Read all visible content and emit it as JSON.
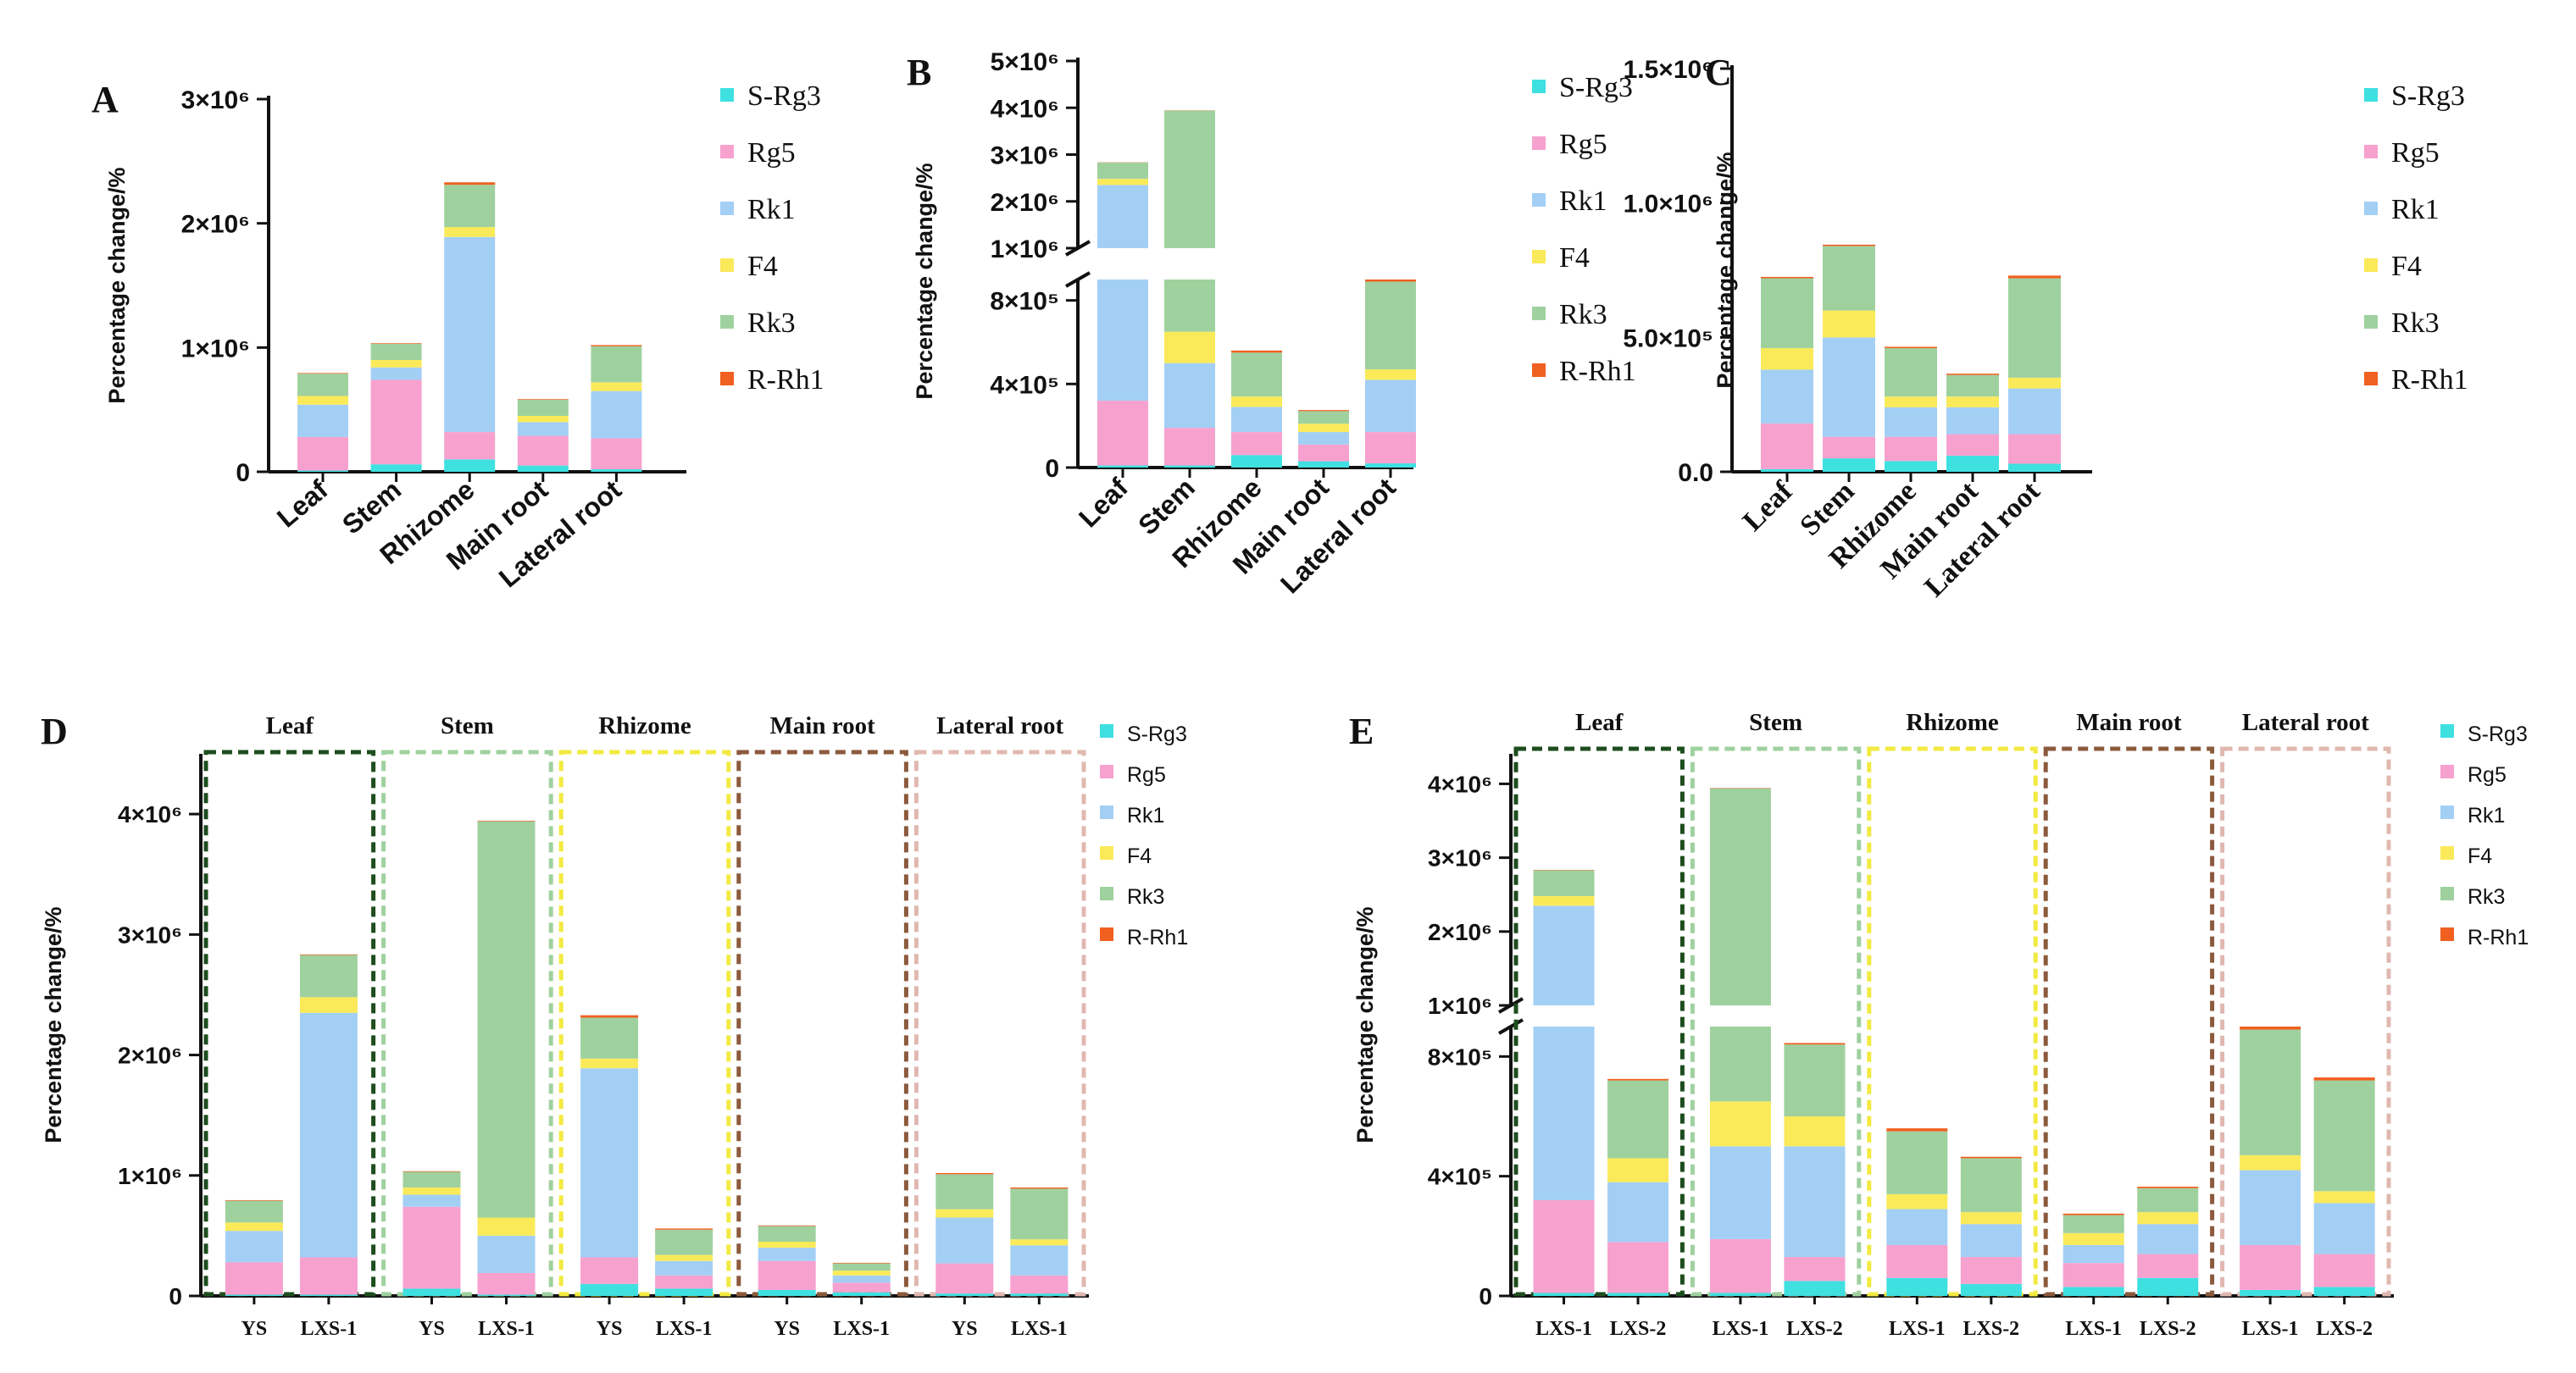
{
  "figure": {
    "series_names": [
      "S-Rg3",
      "Rg5",
      "Rk1",
      "F4",
      "Rk3",
      "R-Rh1"
    ],
    "colors": {
      "S-Rg3": "#3fe0e0",
      "Rg5": "#f7a1cf",
      "Rk1": "#a3cff5",
      "F4": "#faea5a",
      "Rk3": "#9fd19f",
      "R-Rh1": "#f06020"
    },
    "box_colors": {
      "Leaf": "#1e4d1e",
      "Stem": "#9fd19f",
      "Rhizome": "#f2ea40",
      "Main root": "#8b5a3c",
      "Lateral root": "#e0b8b0"
    }
  },
  "chart_data": [
    {
      "panel": "A",
      "type": "bar",
      "stacked": true,
      "ylabel": "Percentage change/%",
      "ylim": [
        0,
        3000000
      ],
      "yticks": [
        0,
        1000000,
        2000000,
        3000000
      ],
      "ytick_labels": [
        "0",
        "1×10⁶",
        "2×10⁶",
        "3×10⁶"
      ],
      "categories": [
        "Leaf",
        "Stem",
        "Rhizome",
        "Main root",
        "Lateral root"
      ],
      "legend": [
        "S-Rg3",
        "Rg5",
        "Rk1",
        "F4",
        "Rk3",
        "R-Rh1"
      ],
      "series": [
        {
          "name": "S-Rg3",
          "values": [
            10000,
            60000,
            100000,
            50000,
            20000
          ]
        },
        {
          "name": "Rg5",
          "values": [
            270000,
            680000,
            220000,
            240000,
            250000
          ]
        },
        {
          "name": "Rk1",
          "values": [
            260000,
            100000,
            1570000,
            110000,
            380000
          ]
        },
        {
          "name": "F4",
          "values": [
            70000,
            60000,
            80000,
            50000,
            70000
          ]
        },
        {
          "name": "Rk3",
          "values": [
            180000,
            130000,
            340000,
            130000,
            290000
          ]
        },
        {
          "name": "R-Rh1",
          "values": [
            5000,
            5000,
            20000,
            5000,
            10000
          ]
        }
      ]
    },
    {
      "panel": "B",
      "type": "bar",
      "stacked": true,
      "broken_axis": true,
      "ylabel": "Percentage change/%",
      "ylim_lower": [
        0,
        900000
      ],
      "ylim_upper": [
        1000000,
        5000000
      ],
      "yticks": [
        0,
        400000,
        800000,
        1000000,
        2000000,
        3000000,
        4000000,
        5000000
      ],
      "ytick_labels": [
        "0",
        "4×10⁵",
        "8×10⁵",
        "1×10⁶",
        "2×10⁶",
        "3×10⁶",
        "4×10⁶",
        "5×10⁶"
      ],
      "categories": [
        "Leaf",
        "Stem",
        "Rhizome",
        "Main root",
        "Lateral root"
      ],
      "legend": [
        "S-Rg3",
        "Rg5",
        "Rk1",
        "F4",
        "Rk3",
        "R-Rh1"
      ],
      "series": [
        {
          "name": "S-Rg3",
          "values": [
            10000,
            10000,
            60000,
            30000,
            20000
          ]
        },
        {
          "name": "Rg5",
          "values": [
            310000,
            180000,
            110000,
            80000,
            150000
          ]
        },
        {
          "name": "Rk1",
          "values": [
            2030000,
            310000,
            120000,
            60000,
            250000
          ]
        },
        {
          "name": "F4",
          "values": [
            130000,
            150000,
            50000,
            40000,
            50000
          ]
        },
        {
          "name": "Rk3",
          "values": [
            350000,
            3290000,
            210000,
            60000,
            420000
          ]
        },
        {
          "name": "R-Rh1",
          "values": [
            5000,
            5000,
            10000,
            5000,
            10000
          ]
        }
      ]
    },
    {
      "panel": "C",
      "type": "bar",
      "stacked": true,
      "ylabel": "Percentage change/%",
      "ylim": [
        0,
        1500000
      ],
      "yticks": [
        0,
        500000,
        1000000,
        1500000
      ],
      "ytick_labels": [
        "0.0",
        "5.0×10⁵",
        "1.0×10⁶",
        "1.5×10⁶"
      ],
      "categories": [
        "Leaf",
        "Stem",
        "Rhizome",
        "Main root",
        "Lateral root"
      ],
      "legend": [
        "S-Rg3",
        "Rg5",
        "Rk1",
        "F4",
        "Rk3",
        "R-Rh1"
      ],
      "series": [
        {
          "name": "S-Rg3",
          "values": [
            10000,
            50000,
            40000,
            60000,
            30000
          ]
        },
        {
          "name": "Rg5",
          "values": [
            170000,
            80000,
            90000,
            80000,
            110000
          ]
        },
        {
          "name": "Rk1",
          "values": [
            200000,
            370000,
            110000,
            100000,
            170000
          ]
        },
        {
          "name": "F4",
          "values": [
            80000,
            100000,
            40000,
            40000,
            40000
          ]
        },
        {
          "name": "Rk3",
          "values": [
            260000,
            240000,
            180000,
            80000,
            370000
          ]
        },
        {
          "name": "R-Rh1",
          "values": [
            5000,
            5000,
            5000,
            5000,
            10000
          ]
        }
      ]
    },
    {
      "panel": "D",
      "type": "bar",
      "stacked": true,
      "grouped": true,
      "ylabel": "Percentage change/%",
      "ylim": [
        0,
        4500000
      ],
      "yticks": [
        0,
        1000000,
        2000000,
        3000000,
        4000000
      ],
      "ytick_labels": [
        "0",
        "1×10⁶",
        "2×10⁶",
        "3×10⁶",
        "4×10⁶"
      ],
      "groups": [
        "Leaf",
        "Stem",
        "Rhizome",
        "Main root",
        "Lateral root"
      ],
      "categories": [
        "YS",
        "LXS-1",
        "YS",
        "LXS-1",
        "YS",
        "LXS-1",
        "YS",
        "LXS-1",
        "YS",
        "LXS-1"
      ],
      "legend": [
        "S-Rg3",
        "Rg5",
        "Rk1",
        "F4",
        "Rk3",
        "R-Rh1"
      ],
      "series": [
        {
          "name": "S-Rg3",
          "values": [
            10000,
            10000,
            60000,
            10000,
            100000,
            60000,
            50000,
            30000,
            20000,
            20000
          ]
        },
        {
          "name": "Rg5",
          "values": [
            270000,
            310000,
            680000,
            180000,
            220000,
            110000,
            240000,
            80000,
            250000,
            150000
          ]
        },
        {
          "name": "Rk1",
          "values": [
            260000,
            2030000,
            100000,
            310000,
            1570000,
            120000,
            110000,
            60000,
            380000,
            250000
          ]
        },
        {
          "name": "F4",
          "values": [
            70000,
            130000,
            60000,
            150000,
            80000,
            50000,
            50000,
            40000,
            70000,
            50000
          ]
        },
        {
          "name": "Rk3",
          "values": [
            180000,
            350000,
            130000,
            3290000,
            340000,
            210000,
            130000,
            60000,
            290000,
            420000
          ]
        },
        {
          "name": "R-Rh1",
          "values": [
            5000,
            5000,
            5000,
            5000,
            20000,
            10000,
            5000,
            5000,
            10000,
            10000
          ]
        }
      ]
    },
    {
      "panel": "E",
      "type": "bar",
      "stacked": true,
      "grouped": true,
      "broken_axis": true,
      "ylabel": "Percentage change/%",
      "ylim_lower": [
        0,
        900000
      ],
      "ylim_upper": [
        1000000,
        4200000
      ],
      "yticks": [
        0,
        400000,
        800000,
        1000000,
        2000000,
        3000000,
        4000000
      ],
      "ytick_labels": [
        "0",
        "4×10⁵",
        "8×10⁵",
        "1×10⁶",
        "2×10⁶",
        "3×10⁶",
        "4×10⁶"
      ],
      "groups": [
        "Leaf",
        "Stem",
        "Rhizome",
        "Main root",
        "Lateral root"
      ],
      "categories": [
        "LXS-1",
        "LXS-2",
        "LXS-1",
        "LXS-2",
        "LXS-1",
        "LXS-2",
        "LXS-1",
        "LXS-2",
        "LXS-1",
        "LXS-2"
      ],
      "legend": [
        "S-Rg3",
        "Rg5",
        "Rk1",
        "F4",
        "Rk3",
        "R-Rh1"
      ],
      "series": [
        {
          "name": "S-Rg3",
          "values": [
            10000,
            10000,
            10000,
            50000,
            60000,
            40000,
            30000,
            60000,
            20000,
            30000
          ]
        },
        {
          "name": "Rg5",
          "values": [
            310000,
            170000,
            180000,
            80000,
            110000,
            90000,
            80000,
            80000,
            150000,
            110000
          ]
        },
        {
          "name": "Rk1",
          "values": [
            2030000,
            200000,
            310000,
            370000,
            120000,
            110000,
            60000,
            100000,
            250000,
            170000
          ]
        },
        {
          "name": "F4",
          "values": [
            130000,
            80000,
            150000,
            100000,
            50000,
            40000,
            40000,
            40000,
            50000,
            40000
          ]
        },
        {
          "name": "Rk3",
          "values": [
            350000,
            260000,
            3290000,
            240000,
            210000,
            180000,
            60000,
            80000,
            420000,
            370000
          ]
        },
        {
          "name": "R-Rh1",
          "values": [
            5000,
            5000,
            5000,
            5000,
            10000,
            5000,
            5000,
            5000,
            10000,
            10000
          ]
        }
      ]
    }
  ]
}
